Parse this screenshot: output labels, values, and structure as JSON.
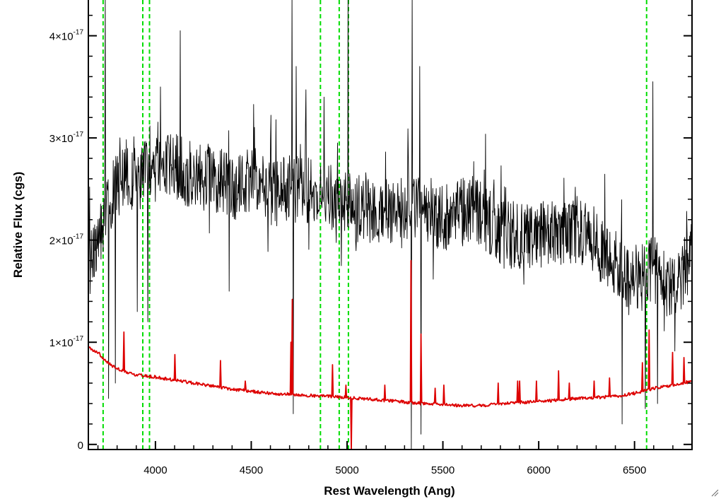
{
  "chart_data": {
    "type": "line",
    "title": "",
    "xlabel": "Rest Wavelength (Ang)",
    "ylabel": "Relative Flux (cgs)",
    "xlim": [
      3650,
      6800
    ],
    "ylim": [
      -0.05,
      4.35
    ],
    "y_multiplier_note": "y values in units of 1e-17",
    "x_ticks": [
      4000,
      4500,
      5000,
      5500,
      6000,
      6500
    ],
    "x_tick_labels": [
      "4000",
      "4500",
      "5000",
      "5500",
      "6000",
      "6500"
    ],
    "y_ticks": [
      0,
      1,
      2,
      3,
      4
    ],
    "y_tick_labels": [
      {
        "base": "0",
        "exp": ""
      },
      {
        "base": "1×10",
        "exp": "-17"
      },
      {
        "base": "2×10",
        "exp": "-17"
      },
      {
        "base": "3×10",
        "exp": "-17"
      },
      {
        "base": "4×10",
        "exp": "-17"
      }
    ],
    "grid": false,
    "reference_lines": {
      "color": "#00dd00",
      "style": "dashed",
      "x": [
        3727,
        3934,
        3969,
        4861,
        4959,
        5007,
        6563
      ]
    },
    "series": [
      {
        "color": "#000000",
        "continuum": {
          "x": [
            3650,
            3700,
            3800,
            3900,
            4000,
            4100,
            4200,
            4300,
            4400,
            4500,
            4600,
            4700,
            4800,
            4900,
            5000,
            5100,
            5200,
            5300,
            5400,
            5500,
            5600,
            5700,
            5800,
            5900,
            6000,
            6100,
            6200,
            6300,
            6400,
            6500,
            6600,
            6700,
            6800
          ],
          "y": [
            1.75,
            2.05,
            2.55,
            2.6,
            2.7,
            2.72,
            2.62,
            2.62,
            2.5,
            2.58,
            2.45,
            2.5,
            2.5,
            2.45,
            2.35,
            2.28,
            2.3,
            2.3,
            2.25,
            2.2,
            2.3,
            2.25,
            2.05,
            2.05,
            2.05,
            2.05,
            2.1,
            1.95,
            1.8,
            1.55,
            1.75,
            1.5,
            1.85
          ]
        },
        "noise_amplitude": 0.33,
        "spikes": [
          {
            "x": 3738,
            "y": 4.4
          },
          {
            "x": 3755,
            "y": 0.45
          },
          {
            "x": 3790,
            "y": 0.6
          },
          {
            "x": 3905,
            "y": 1.3
          },
          {
            "x": 3960,
            "y": 1.2
          },
          {
            "x": 4025,
            "y": 3.5
          },
          {
            "x": 4130,
            "y": 4.05
          },
          {
            "x": 4385,
            "y": 1.5
          },
          {
            "x": 4712,
            "y": 4.4
          },
          {
            "x": 4720,
            "y": 0.3
          },
          {
            "x": 4735,
            "y": 3.7
          },
          {
            "x": 4880,
            "y": 3.4
          },
          {
            "x": 5005,
            "y": 4.4
          },
          {
            "x": 5335,
            "y": -0.05
          },
          {
            "x": 5340,
            "y": 4.4
          },
          {
            "x": 5380,
            "y": 3.7
          },
          {
            "x": 5385,
            "y": 0.1
          },
          {
            "x": 6435,
            "y": 0.2
          },
          {
            "x": 6555,
            "y": 0.35
          },
          {
            "x": 6595,
            "y": 3.55
          },
          {
            "x": 6620,
            "y": 0.4
          }
        ]
      },
      {
        "color": "#dd0000",
        "continuum": {
          "x": [
            3650,
            3700,
            3750,
            3800,
            3900,
            4000,
            4200,
            4400,
            4600,
            4800,
            5000,
            5200,
            5400,
            5600,
            5700,
            5800,
            6000,
            6200,
            6400,
            6500,
            6600,
            6700,
            6800
          ],
          "y": [
            0.95,
            0.9,
            0.8,
            0.74,
            0.68,
            0.66,
            0.6,
            0.54,
            0.5,
            0.48,
            0.46,
            0.43,
            0.4,
            0.38,
            0.38,
            0.4,
            0.42,
            0.45,
            0.47,
            0.5,
            0.55,
            0.58,
            0.62
          ]
        },
        "lines": [
          {
            "x": 3835,
            "y": 1.1
          },
          {
            "x": 4102,
            "y": 0.88
          },
          {
            "x": 4340,
            "y": 0.82
          },
          {
            "x": 4471,
            "y": 0.62
          },
          {
            "x": 4708,
            "y": 1.0
          },
          {
            "x": 4713,
            "y": 1.42
          },
          {
            "x": 4925,
            "y": 0.78
          },
          {
            "x": 4995,
            "y": 0.58
          },
          {
            "x": 5198,
            "y": 0.58
          },
          {
            "x": 5335,
            "y": 1.8
          },
          {
            "x": 5388,
            "y": 1.08
          },
          {
            "x": 5460,
            "y": 0.55
          },
          {
            "x": 5507,
            "y": 0.58
          },
          {
            "x": 5790,
            "y": 0.6
          },
          {
            "x": 5890,
            "y": 0.62
          },
          {
            "x": 5900,
            "y": 0.62
          },
          {
            "x": 5990,
            "y": 0.62
          },
          {
            "x": 6105,
            "y": 0.72
          },
          {
            "x": 6160,
            "y": 0.6
          },
          {
            "x": 6290,
            "y": 0.62
          },
          {
            "x": 6370,
            "y": 0.65
          },
          {
            "x": 6540,
            "y": 0.8
          },
          {
            "x": 6578,
            "y": 1.12
          },
          {
            "x": 6700,
            "y": 0.9
          },
          {
            "x": 6760,
            "y": 0.85
          }
        ],
        "dips": [
          {
            "x": 5022,
            "y": -0.05
          }
        ]
      }
    ]
  }
}
